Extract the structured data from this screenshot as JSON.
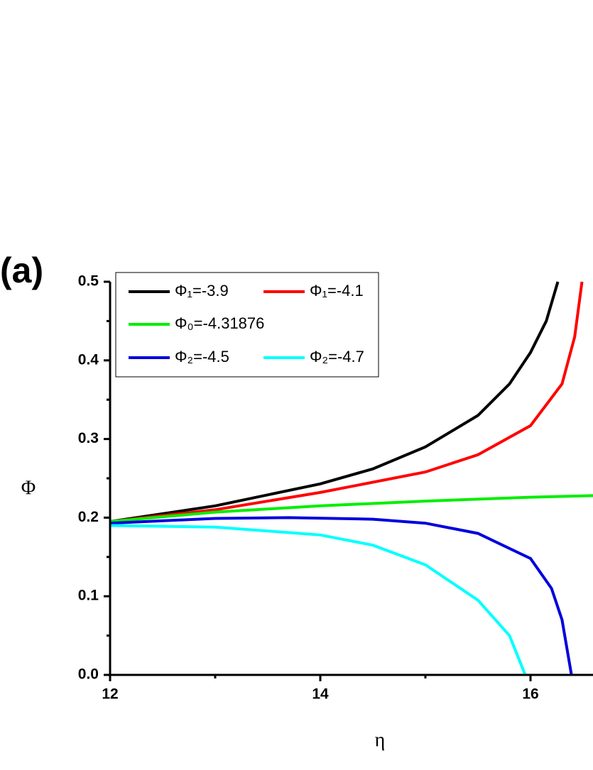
{
  "chart_data": {
    "type": "line",
    "panel_label": "(a)",
    "xlabel": "η",
    "ylabel": "Φ",
    "xlim": [
      12,
      16.6
    ],
    "ylim": [
      0,
      0.5
    ],
    "xticks": [
      12,
      14,
      16
    ],
    "xminorticks": [
      13,
      15
    ],
    "yticks": [
      {
        "value": 0,
        "label": "0.0"
      },
      0.1,
      0.2,
      0.3,
      0.4,
      0.5
    ],
    "yminorticks": [
      0.05,
      0.15,
      0.25,
      0.35,
      0.45
    ],
    "legend": "upper left",
    "series": [
      {
        "name": "Φ₁=-3.9",
        "color": "#000000",
        "x": [
          12,
          13,
          14,
          14.5,
          15,
          15.5,
          15.8,
          16,
          16.15,
          16.26
        ],
        "values": [
          0.195,
          0.215,
          0.243,
          0.262,
          0.29,
          0.33,
          0.37,
          0.41,
          0.45,
          0.5
        ]
      },
      {
        "name": "Φ₁=-4.1",
        "color": "#ff0000",
        "x": [
          12,
          13,
          14,
          15,
          15.5,
          16,
          16.3,
          16.42,
          16.49
        ],
        "values": [
          0.195,
          0.21,
          0.232,
          0.258,
          0.28,
          0.317,
          0.37,
          0.43,
          0.5
        ]
      },
      {
        "name": "Φ₀=-4.31876",
        "color": "#00ee00",
        "x": [
          12,
          13,
          14,
          15,
          16,
          16.6
        ],
        "values": [
          0.195,
          0.207,
          0.215,
          0.221,
          0.226,
          0.228
        ]
      },
      {
        "name": "Φ₂=-4.5",
        "color": "#0000dd",
        "x": [
          12,
          13,
          13.7,
          14.5,
          15,
          15.5,
          16,
          16.2,
          16.3,
          16.39
        ],
        "values": [
          0.193,
          0.199,
          0.2,
          0.198,
          0.193,
          0.18,
          0.148,
          0.11,
          0.07,
          0
        ]
      },
      {
        "name": "Φ₂=-4.7",
        "color": "#00ffff",
        "x": [
          12,
          13,
          14,
          14.5,
          15,
          15.5,
          15.8,
          15.95
        ],
        "values": [
          0.19,
          0.188,
          0.178,
          0.165,
          0.14,
          0.095,
          0.05,
          0
        ]
      }
    ]
  }
}
